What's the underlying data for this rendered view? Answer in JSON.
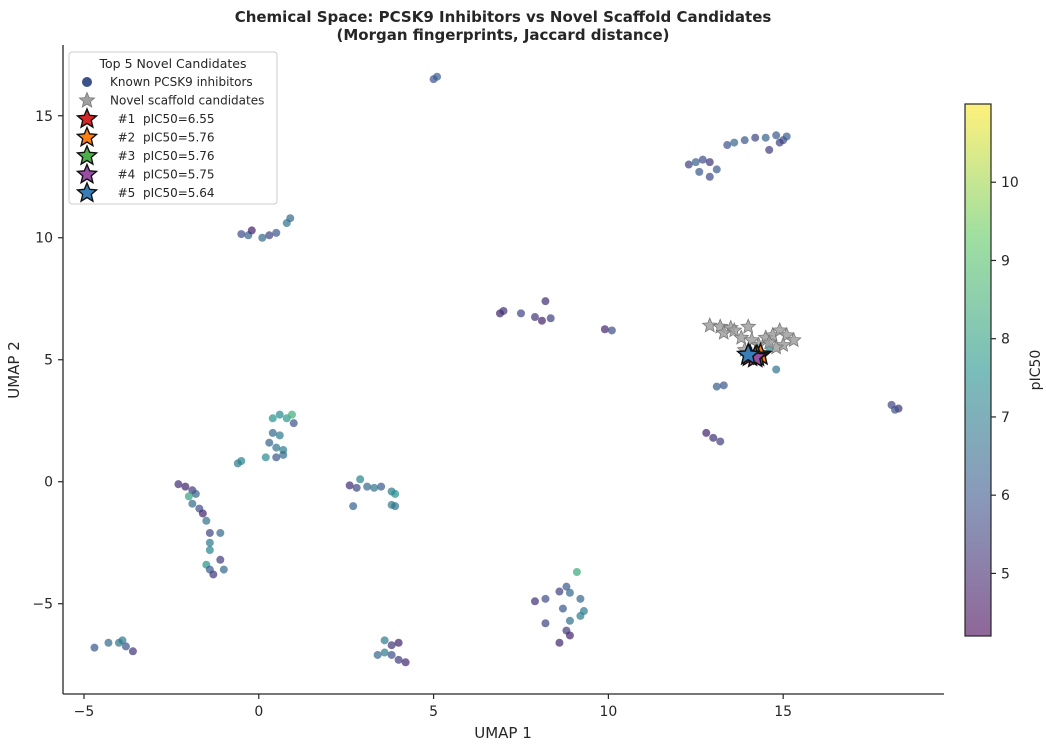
{
  "chart_data": {
    "type": "scatter",
    "title": "Chemical Space: PCSK9 Inhibitors vs Novel Scaffold Candidates",
    "subtitle": "(Morgan fingerprints, Jaccard distance)",
    "xlabel": "UMAP 1",
    "ylabel": "UMAP 2",
    "xlim": [
      -5.6,
      19.6
    ],
    "ylim": [
      -8.7,
      17.9
    ],
    "xticks": [
      -5,
      0,
      5,
      10,
      15
    ],
    "yticks": [
      -5,
      0,
      5,
      10,
      15
    ],
    "tick_labels_x": [
      "−5",
      "0",
      "5",
      "10",
      "15"
    ],
    "tick_labels_y": [
      "−5",
      "0",
      "5",
      "10",
      "15"
    ],
    "grid": false,
    "colorbar": {
      "label": "pIC50",
      "range": [
        4.2,
        11.0
      ],
      "ticks": [
        5,
        6,
        7,
        8,
        9,
        10
      ],
      "tick_labels": [
        "5",
        "6",
        "7",
        "8",
        "9",
        "10"
      ],
      "colormap": "viridis"
    },
    "legend": {
      "title": "Top 5 Novel Candidates",
      "placement": "top-left",
      "entries": [
        {
          "label": "Known PCSK9 inhibitors",
          "marker": "circle",
          "color": "#3b528b"
        },
        {
          "label": "Novel scaffold candidates",
          "marker": "star",
          "color": "#a0a0a0"
        },
        {
          "label": "  #1  pIC50=6.55",
          "marker": "star",
          "color": "#d62728"
        },
        {
          "label": "  #2  pIC50=5.76",
          "marker": "star",
          "color": "#ff7f0e"
        },
        {
          "label": "  #3  pIC50=5.76",
          "marker": "star",
          "color": "#4daf4a"
        },
        {
          "label": "  #4  pIC50=5.75",
          "marker": "star",
          "color": "#984ea3"
        },
        {
          "label": "  #5  pIC50=5.64",
          "marker": "star",
          "color": "#377eb8"
        }
      ]
    },
    "series": [
      {
        "name": "Known PCSK9 inhibitors",
        "marker": "circle",
        "points": [
          {
            "x": 5.0,
            "y": 16.5,
            "c": 5.9
          },
          {
            "x": 5.1,
            "y": 16.6,
            "c": 6.2
          },
          {
            "x": -0.5,
            "y": 10.15,
            "c": 5.8
          },
          {
            "x": -0.3,
            "y": 10.1,
            "c": 6.3
          },
          {
            "x": -0.2,
            "y": 10.3,
            "c": 4.8
          },
          {
            "x": 0.1,
            "y": 10.0,
            "c": 6.5
          },
          {
            "x": 0.3,
            "y": 10.1,
            "c": 5.6
          },
          {
            "x": 0.5,
            "y": 10.2,
            "c": 6.0
          },
          {
            "x": 0.8,
            "y": 10.6,
            "c": 6.8
          },
          {
            "x": 0.9,
            "y": 10.8,
            "c": 6.4
          },
          {
            "x": 12.3,
            "y": 13.0,
            "c": 5.5
          },
          {
            "x": 12.5,
            "y": 13.1,
            "c": 6.2
          },
          {
            "x": 12.7,
            "y": 13.2,
            "c": 5.8
          },
          {
            "x": 12.9,
            "y": 13.1,
            "c": 5.3
          },
          {
            "x": 12.6,
            "y": 12.7,
            "c": 6.0
          },
          {
            "x": 12.9,
            "y": 12.5,
            "c": 5.7
          },
          {
            "x": 13.1,
            "y": 12.8,
            "c": 6.1
          },
          {
            "x": 13.4,
            "y": 13.8,
            "c": 5.9
          },
          {
            "x": 13.6,
            "y": 13.9,
            "c": 6.4
          },
          {
            "x": 13.9,
            "y": 14.0,
            "c": 6.0
          },
          {
            "x": 14.2,
            "y": 14.1,
            "c": 5.6
          },
          {
            "x": 14.5,
            "y": 14.1,
            "c": 6.3
          },
          {
            "x": 14.6,
            "y": 13.6,
            "c": 5.4
          },
          {
            "x": 14.8,
            "y": 14.2,
            "c": 6.1
          },
          {
            "x": 15.0,
            "y": 14.0,
            "c": 5.8
          },
          {
            "x": 15.1,
            "y": 14.15,
            "c": 6.2
          },
          {
            "x": 14.9,
            "y": 13.9,
            "c": 5.5
          },
          {
            "x": 6.9,
            "y": 6.9,
            "c": 4.9
          },
          {
            "x": 7.0,
            "y": 7.0,
            "c": 5.2
          },
          {
            "x": 7.5,
            "y": 6.9,
            "c": 5.6
          },
          {
            "x": 7.9,
            "y": 6.75,
            "c": 5.3
          },
          {
            "x": 8.1,
            "y": 6.6,
            "c": 4.9
          },
          {
            "x": 8.2,
            "y": 7.4,
            "c": 5.1
          },
          {
            "x": 8.35,
            "y": 6.7,
            "c": 5.5
          },
          {
            "x": 9.9,
            "y": 6.25,
            "c": 5.0
          },
          {
            "x": 10.1,
            "y": 6.2,
            "c": 5.8
          },
          {
            "x": 12.8,
            "y": 2.0,
            "c": 4.9
          },
          {
            "x": 13.0,
            "y": 1.8,
            "c": 5.2
          },
          {
            "x": 13.2,
            "y": 1.65,
            "c": 5.5
          },
          {
            "x": 13.1,
            "y": 3.9,
            "c": 6.2
          },
          {
            "x": 13.3,
            "y": 3.95,
            "c": 6.0
          },
          {
            "x": 14.8,
            "y": 4.6,
            "c": 6.8
          },
          {
            "x": 14.6,
            "y": 5.5,
            "c": 7.4
          },
          {
            "x": 18.1,
            "y": 3.15,
            "c": 5.6
          },
          {
            "x": 18.3,
            "y": 3.0,
            "c": 5.2
          },
          {
            "x": 18.2,
            "y": 2.95,
            "c": 5.9
          },
          {
            "x": 0.4,
            "y": 2.6,
            "c": 7.6
          },
          {
            "x": 0.6,
            "y": 2.75,
            "c": 7.4
          },
          {
            "x": 0.8,
            "y": 2.6,
            "c": 7.8
          },
          {
            "x": 0.95,
            "y": 2.75,
            "c": 8.4
          },
          {
            "x": 1.0,
            "y": 2.4,
            "c": 5.9
          },
          {
            "x": 0.4,
            "y": 2.0,
            "c": 6.4
          },
          {
            "x": 0.6,
            "y": 1.9,
            "c": 7.0
          },
          {
            "x": 0.3,
            "y": 1.6,
            "c": 6.3
          },
          {
            "x": 0.5,
            "y": 1.4,
            "c": 6.8
          },
          {
            "x": 0.7,
            "y": 1.3,
            "c": 7.1
          },
          {
            "x": 0.2,
            "y": 1.0,
            "c": 7.4
          },
          {
            "x": 0.5,
            "y": 1.0,
            "c": 6.0
          },
          {
            "x": 0.7,
            "y": 1.1,
            "c": 6.6
          },
          {
            "x": -0.6,
            "y": 0.75,
            "c": 6.9
          },
          {
            "x": -0.5,
            "y": 0.85,
            "c": 7.2
          },
          {
            "x": -2.3,
            "y": -0.1,
            "c": 5.1
          },
          {
            "x": -2.1,
            "y": -0.2,
            "c": 4.9
          },
          {
            "x": -1.9,
            "y": -0.35,
            "c": 5.4
          },
          {
            "x": -1.8,
            "y": -0.5,
            "c": 6.3
          },
          {
            "x": -2.0,
            "y": -0.6,
            "c": 8.1
          },
          {
            "x": -1.9,
            "y": -0.9,
            "c": 6.5
          },
          {
            "x": -1.7,
            "y": -1.1,
            "c": 5.8
          },
          {
            "x": -1.6,
            "y": -1.3,
            "c": 4.9
          },
          {
            "x": -1.5,
            "y": -1.6,
            "c": 6.7
          },
          {
            "x": -1.4,
            "y": -2.1,
            "c": 5.6
          },
          {
            "x": -1.1,
            "y": -2.1,
            "c": 6.5
          },
          {
            "x": -1.4,
            "y": -2.5,
            "c": 6.9
          },
          {
            "x": -1.4,
            "y": -2.8,
            "c": 7.2
          },
          {
            "x": -1.5,
            "y": -3.4,
            "c": 7.6
          },
          {
            "x": -1.4,
            "y": -3.6,
            "c": 6.1
          },
          {
            "x": -1.3,
            "y": -3.8,
            "c": 5.3
          },
          {
            "x": -1.0,
            "y": -3.6,
            "c": 6.4
          },
          {
            "x": -1.1,
            "y": -3.2,
            "c": 5.4
          },
          {
            "x": 2.6,
            "y": -0.15,
            "c": 5.1
          },
          {
            "x": 2.8,
            "y": -0.25,
            "c": 5.6
          },
          {
            "x": 2.9,
            "y": 0.1,
            "c": 7.2
          },
          {
            "x": 3.1,
            "y": -0.2,
            "c": 6.4
          },
          {
            "x": 3.3,
            "y": -0.25,
            "c": 6.8
          },
          {
            "x": 3.5,
            "y": -0.2,
            "c": 6.1
          },
          {
            "x": 3.8,
            "y": -0.4,
            "c": 7.0
          },
          {
            "x": 3.9,
            "y": -0.5,
            "c": 7.6
          },
          {
            "x": 2.7,
            "y": -1.0,
            "c": 6.3
          },
          {
            "x": 3.8,
            "y": -0.95,
            "c": 7.1
          },
          {
            "x": 3.9,
            "y": -1.0,
            "c": 6.7
          },
          {
            "x": 7.9,
            "y": -4.9,
            "c": 5.2
          },
          {
            "x": 8.2,
            "y": -4.8,
            "c": 5.8
          },
          {
            "x": 8.6,
            "y": -4.5,
            "c": 5.5
          },
          {
            "x": 8.8,
            "y": -4.3,
            "c": 6.1
          },
          {
            "x": 8.9,
            "y": -4.55,
            "c": 6.5
          },
          {
            "x": 9.1,
            "y": -3.7,
            "c": 8.3
          },
          {
            "x": 9.2,
            "y": -4.8,
            "c": 6.4
          },
          {
            "x": 9.3,
            "y": -5.3,
            "c": 6.9
          },
          {
            "x": 9.2,
            "y": -5.5,
            "c": 7.1
          },
          {
            "x": 8.9,
            "y": -5.7,
            "c": 6.6
          },
          {
            "x": 8.8,
            "y": -6.1,
            "c": 5.4
          },
          {
            "x": 8.9,
            "y": -6.3,
            "c": 4.9
          },
          {
            "x": 8.6,
            "y": -6.6,
            "c": 5.0
          },
          {
            "x": 8.2,
            "y": -5.8,
            "c": 5.6
          },
          {
            "x": 8.7,
            "y": -5.2,
            "c": 6.0
          },
          {
            "x": 3.6,
            "y": -6.5,
            "c": 7.0
          },
          {
            "x": 3.8,
            "y": -6.7,
            "c": 5.3
          },
          {
            "x": 4.0,
            "y": -6.6,
            "c": 4.9
          },
          {
            "x": 3.4,
            "y": -7.1,
            "c": 6.4
          },
          {
            "x": 3.6,
            "y": -7.0,
            "c": 6.9
          },
          {
            "x": 3.8,
            "y": -7.1,
            "c": 5.8
          },
          {
            "x": 4.0,
            "y": -7.3,
            "c": 5.4
          },
          {
            "x": 4.2,
            "y": -7.4,
            "c": 5.0
          },
          {
            "x": -4.7,
            "y": -6.8,
            "c": 6.0
          },
          {
            "x": -4.3,
            "y": -6.6,
            "c": 6.5
          },
          {
            "x": -4.0,
            "y": -6.6,
            "c": 6.8
          },
          {
            "x": -3.8,
            "y": -6.75,
            "c": 5.9
          },
          {
            "x": -3.6,
            "y": -6.95,
            "c": 5.3
          },
          {
            "x": -3.9,
            "y": -6.5,
            "c": 7.0
          }
        ]
      },
      {
        "name": "Novel scaffold candidates",
        "marker": "star",
        "points": [
          {
            "x": 12.9,
            "y": 6.4
          },
          {
            "x": 13.2,
            "y": 6.35
          },
          {
            "x": 13.5,
            "y": 6.3
          },
          {
            "x": 13.3,
            "y": 6.1
          },
          {
            "x": 13.6,
            "y": 6.2
          },
          {
            "x": 14.0,
            "y": 6.35
          },
          {
            "x": 13.8,
            "y": 5.9
          },
          {
            "x": 14.1,
            "y": 5.8
          },
          {
            "x": 14.3,
            "y": 5.6
          },
          {
            "x": 14.5,
            "y": 5.9
          },
          {
            "x": 14.7,
            "y": 6.0
          },
          {
            "x": 14.9,
            "y": 6.2
          },
          {
            "x": 15.1,
            "y": 6.0
          },
          {
            "x": 15.3,
            "y": 5.8
          },
          {
            "x": 15.0,
            "y": 5.6
          },
          {
            "x": 14.8,
            "y": 5.5
          },
          {
            "x": 13.9,
            "y": 5.4
          },
          {
            "x": 14.6,
            "y": 5.7
          }
        ]
      },
      {
        "name": "Top 5 Novel Candidates",
        "marker": "star",
        "points": [
          {
            "label": "#1",
            "x": 14.05,
            "y": 5.15,
            "c": 6.55,
            "color": "#d62728"
          },
          {
            "label": "#2",
            "x": 14.35,
            "y": 5.2,
            "c": 5.76,
            "color": "#ff7f0e"
          },
          {
            "label": "#3",
            "x": 14.25,
            "y": 5.15,
            "c": 5.76,
            "color": "#4daf4a"
          },
          {
            "label": "#4",
            "x": 14.2,
            "y": 5.1,
            "c": 5.75,
            "color": "#984ea3"
          },
          {
            "label": "#5",
            "x": 14.0,
            "y": 5.2,
            "c": 5.64,
            "color": "#377eb8"
          }
        ]
      }
    ]
  }
}
